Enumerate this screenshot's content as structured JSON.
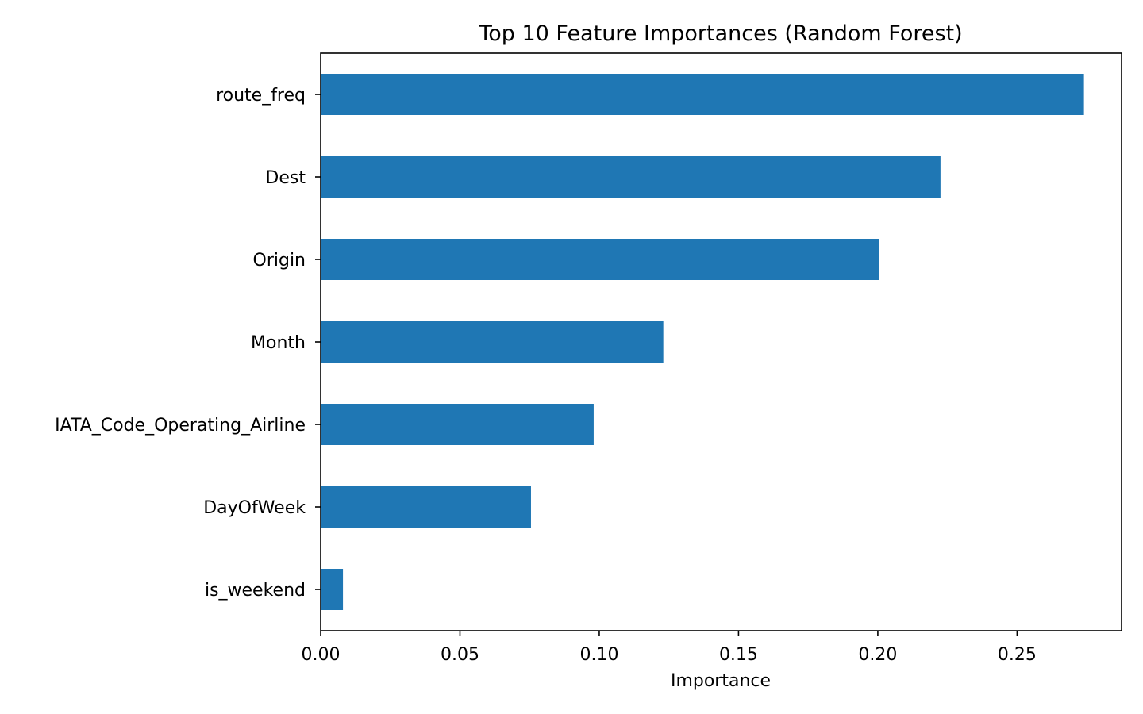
{
  "chart_data": {
    "type": "bar",
    "orientation": "horizontal",
    "title": "Top 10 Feature Importances (Random Forest)",
    "xlabel": "Importance",
    "ylabel": "",
    "categories": [
      "route_freq",
      "Dest",
      "Origin",
      "Month",
      "IATA_Code_Operating_Airline",
      "DayOfWeek",
      "is_weekend"
    ],
    "values": [
      0.274,
      0.2225,
      0.2005,
      0.123,
      0.098,
      0.0755,
      0.008
    ],
    "xlim": [
      0,
      0.2875
    ],
    "xticks": [
      0.0,
      0.05,
      0.1,
      0.15,
      0.2,
      0.25
    ],
    "xtick_labels": [
      "0.00",
      "0.05",
      "0.10",
      "0.15",
      "0.20",
      "0.25"
    ],
    "bar_color": "#1f77b4",
    "grid": false,
    "legend": "none"
  }
}
